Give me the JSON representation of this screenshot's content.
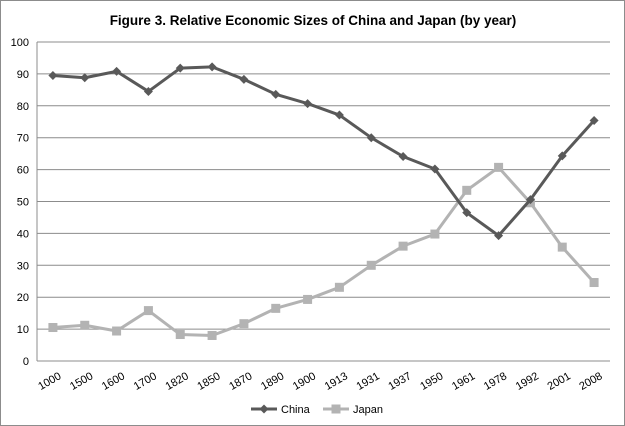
{
  "chart_data": {
    "type": "line",
    "title": "Figure 3. Relative Economic  Sizes of China and Japan (by year)",
    "xlabel": "",
    "ylabel": "",
    "ylim": [
      0,
      100
    ],
    "yticks": [
      "0",
      "10",
      "20",
      "30",
      "40",
      "50",
      "60",
      "70",
      "80",
      "90",
      "100"
    ],
    "categories": [
      "1000",
      "1500",
      "1600",
      "1700",
      "1820",
      "1850",
      "1870",
      "1890",
      "1900",
      "1913",
      "1931",
      "1937",
      "1950",
      "1961",
      "1978",
      "1992",
      "2001",
      "2008"
    ],
    "grid": "horizontal",
    "legend_position": "bottom",
    "series": [
      {
        "name": "China",
        "color": "#595959",
        "marker": "diamond",
        "values": [
          89.5,
          88.8,
          90.8,
          84.5,
          91.8,
          92.2,
          88.3,
          83.6,
          80.7,
          77.1,
          70.0,
          64.1,
          60.2,
          46.5,
          39.3,
          50.6,
          64.3,
          75.4
        ]
      },
      {
        "name": "Japan",
        "color": "#b3b3b3",
        "marker": "square",
        "values": [
          10.5,
          11.2,
          9.4,
          15.8,
          8.3,
          8.0,
          11.7,
          16.5,
          19.3,
          23.1,
          30.0,
          36.0,
          39.8,
          53.5,
          60.7,
          49.6,
          35.7,
          24.6
        ]
      }
    ]
  }
}
